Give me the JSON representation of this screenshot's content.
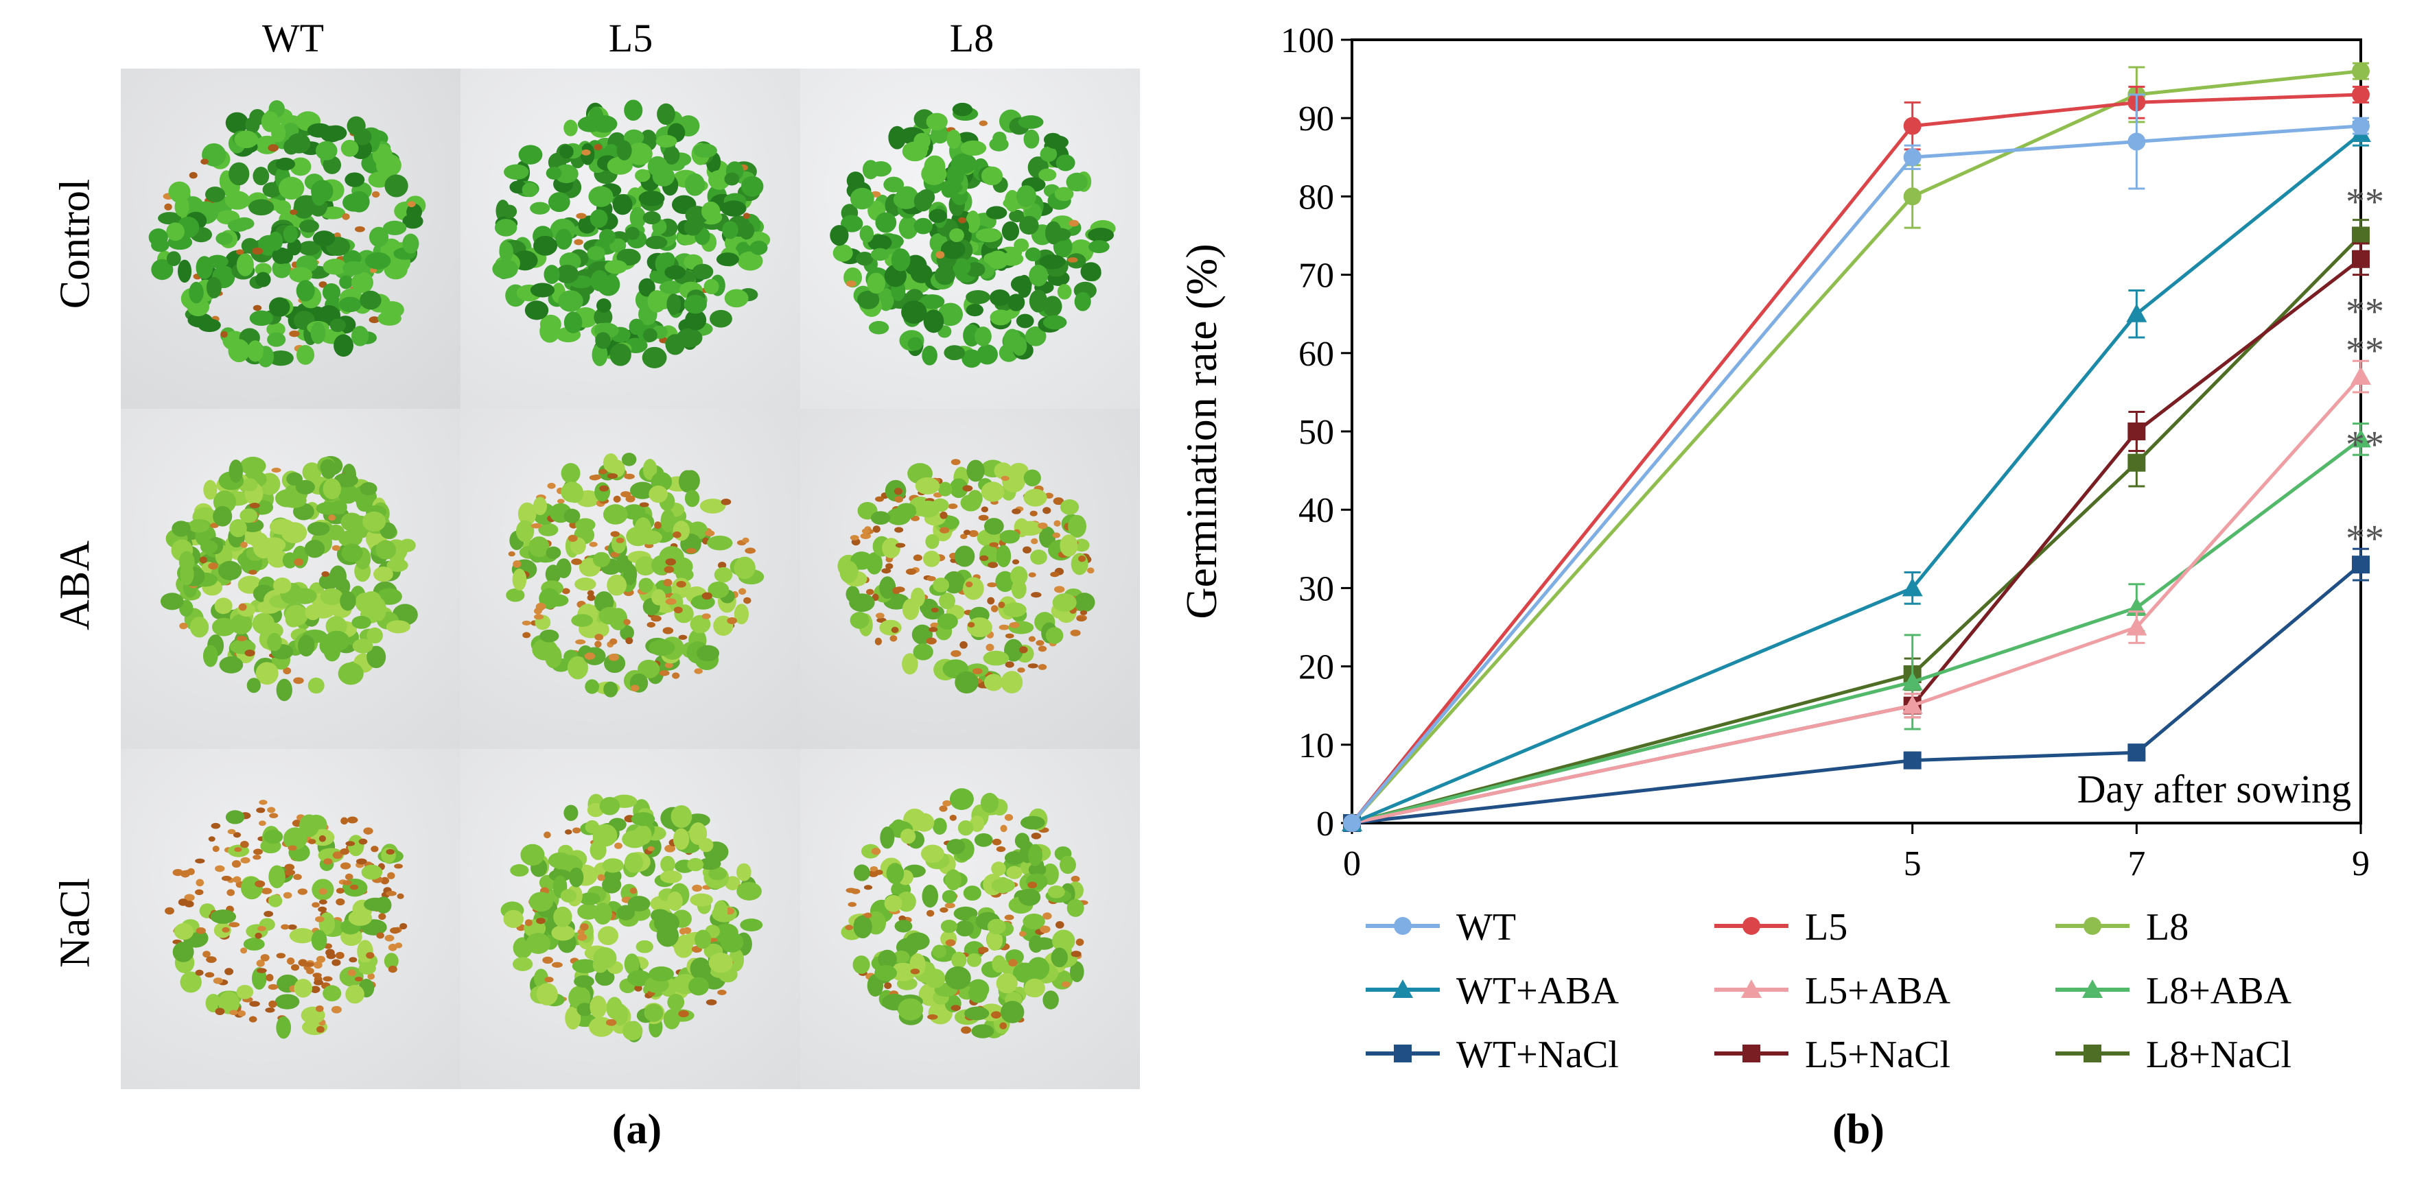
{
  "panel_a": {
    "label": "(a)",
    "columns": [
      "WT",
      "L5",
      "L8"
    ],
    "rows": [
      "Control",
      "ABA",
      "NaCl"
    ]
  },
  "panel_b": {
    "label": "(b)"
  },
  "colors": {
    "WT": "#7eaee3",
    "L5": "#db4448",
    "L8": "#8fbd4e",
    "WT+ABA": "#1a8aa8",
    "L5+ABA": "#ef9fa3",
    "L8+ABA": "#52b86a",
    "WT+NaCl": "#1f4f85",
    "L5+NaCl": "#7a1e23",
    "L8+NaCl": "#4e6e25"
  },
  "chart_data": {
    "type": "line",
    "title": "",
    "xlabel": "Day after sowing",
    "ylabel": "Germination rate (%)",
    "x": [
      0,
      5,
      7,
      9
    ],
    "x_tick_labels": [
      "0",
      "5",
      "7",
      "9"
    ],
    "ylim": [
      0,
      100
    ],
    "y_ticks": [
      0,
      10,
      20,
      30,
      40,
      50,
      60,
      70,
      80,
      90,
      100
    ],
    "legend_position": "bottom",
    "series": [
      {
        "name": "WT",
        "marker": "circle",
        "values": [
          0,
          85,
          87,
          89
        ],
        "errors": [
          0,
          1.5,
          6,
          1
        ]
      },
      {
        "name": "L5",
        "marker": "circle",
        "values": [
          0,
          89,
          92,
          93
        ],
        "errors": [
          0,
          3,
          2,
          1
        ]
      },
      {
        "name": "L8",
        "marker": "circle",
        "values": [
          0,
          80,
          93,
          96
        ],
        "errors": [
          0,
          4,
          3.5,
          1
        ]
      },
      {
        "name": "WT+ABA",
        "marker": "triangle",
        "values": [
          0,
          30,
          65,
          88
        ],
        "errors": [
          0,
          2,
          3,
          1.5
        ]
      },
      {
        "name": "L5+ABA",
        "marker": "triangle",
        "values": [
          0,
          15,
          25,
          57
        ],
        "errors": [
          0,
          1.5,
          2,
          2
        ]
      },
      {
        "name": "L8+ABA",
        "marker": "triangle",
        "values": [
          0,
          18,
          27.5,
          49
        ],
        "errors": [
          0,
          6,
          3,
          2
        ]
      },
      {
        "name": "WT+NaCl",
        "marker": "square",
        "values": [
          0,
          8,
          9,
          33
        ],
        "errors": [
          0,
          1,
          1,
          2
        ]
      },
      {
        "name": "L5+NaCl",
        "marker": "square",
        "values": [
          0,
          15,
          50,
          72
        ],
        "errors": [
          0,
          1.5,
          2.5,
          2
        ]
      },
      {
        "name": "L8+NaCl",
        "marker": "square",
        "values": [
          0,
          19,
          46,
          75
        ],
        "errors": [
          0,
          2,
          3,
          2
        ]
      }
    ],
    "annotations": [
      {
        "text": "**",
        "x": 9,
        "y": 80
      },
      {
        "text": "**",
        "x": 9,
        "y": 66
      },
      {
        "text": "**",
        "x": 9,
        "y": 61
      },
      {
        "text": "**",
        "x": 9,
        "y": 49
      },
      {
        "text": "**",
        "x": 9,
        "y": 37
      }
    ]
  }
}
